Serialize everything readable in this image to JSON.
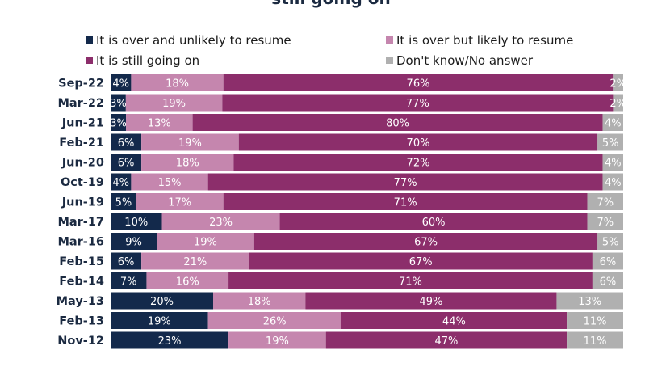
{
  "chart_data": {
    "type": "bar",
    "orientation": "horizontal",
    "stacked": true,
    "title": "still going on",
    "legend_position": "top",
    "xlim": [
      0,
      100
    ],
    "categories": [
      "Sep-22",
      "Mar-22",
      "Jun-21",
      "Feb-21",
      "Jun-20",
      "Oct-19",
      "Jun-19",
      "Mar-17",
      "Mar-16",
      "Feb-15",
      "Feb-14",
      "May-13",
      "Feb-13",
      "Nov-12"
    ],
    "series": [
      {
        "name": "It is over and unlikely to resume",
        "color": "#13294b",
        "values": [
          4,
          3,
          3,
          6,
          6,
          4,
          5,
          10,
          9,
          6,
          7,
          20,
          19,
          23
        ],
        "labels": [
          "4%",
          "3%",
          "3%",
          "6%",
          "6%",
          "4%",
          "5%",
          "10%",
          "9%",
          "6%",
          "7%",
          "20%",
          "19%",
          "23%"
        ]
      },
      {
        "name": "It is over but likely to resume",
        "color": "#c586ae",
        "values": [
          18,
          19,
          13,
          19,
          18,
          15,
          17,
          23,
          19,
          21,
          16,
          18,
          26,
          19
        ],
        "labels": [
          "18%",
          "19%",
          "13%",
          "19%",
          "18%",
          "15%",
          "17%",
          "23%",
          "19%",
          "21%",
          "16%",
          "18%",
          "26%",
          "19%"
        ]
      },
      {
        "name": "It is still going on",
        "color": "#8c2e6b",
        "values": [
          76,
          77,
          80,
          70,
          72,
          77,
          71,
          60,
          67,
          67,
          71,
          49,
          44,
          47
        ],
        "labels": [
          "76%",
          "77%",
          "80%",
          "70%",
          "72%",
          "77%",
          "71%",
          "60%",
          "67%",
          "67%",
          "71%",
          "49%",
          "44%",
          "47%"
        ]
      },
      {
        "name": "Don't know/No answer",
        "color": "#b0b0b0",
        "values": [
          2,
          2,
          4,
          5,
          4,
          4,
          7,
          7,
          5,
          6,
          6,
          13,
          11,
          11
        ],
        "labels": [
          "2%",
          "2%",
          "4%",
          "5%",
          "4%",
          "4%",
          "7%",
          "7%",
          "5%",
          "6%",
          "6%",
          "13%",
          "11%",
          "11%"
        ]
      }
    ]
  }
}
